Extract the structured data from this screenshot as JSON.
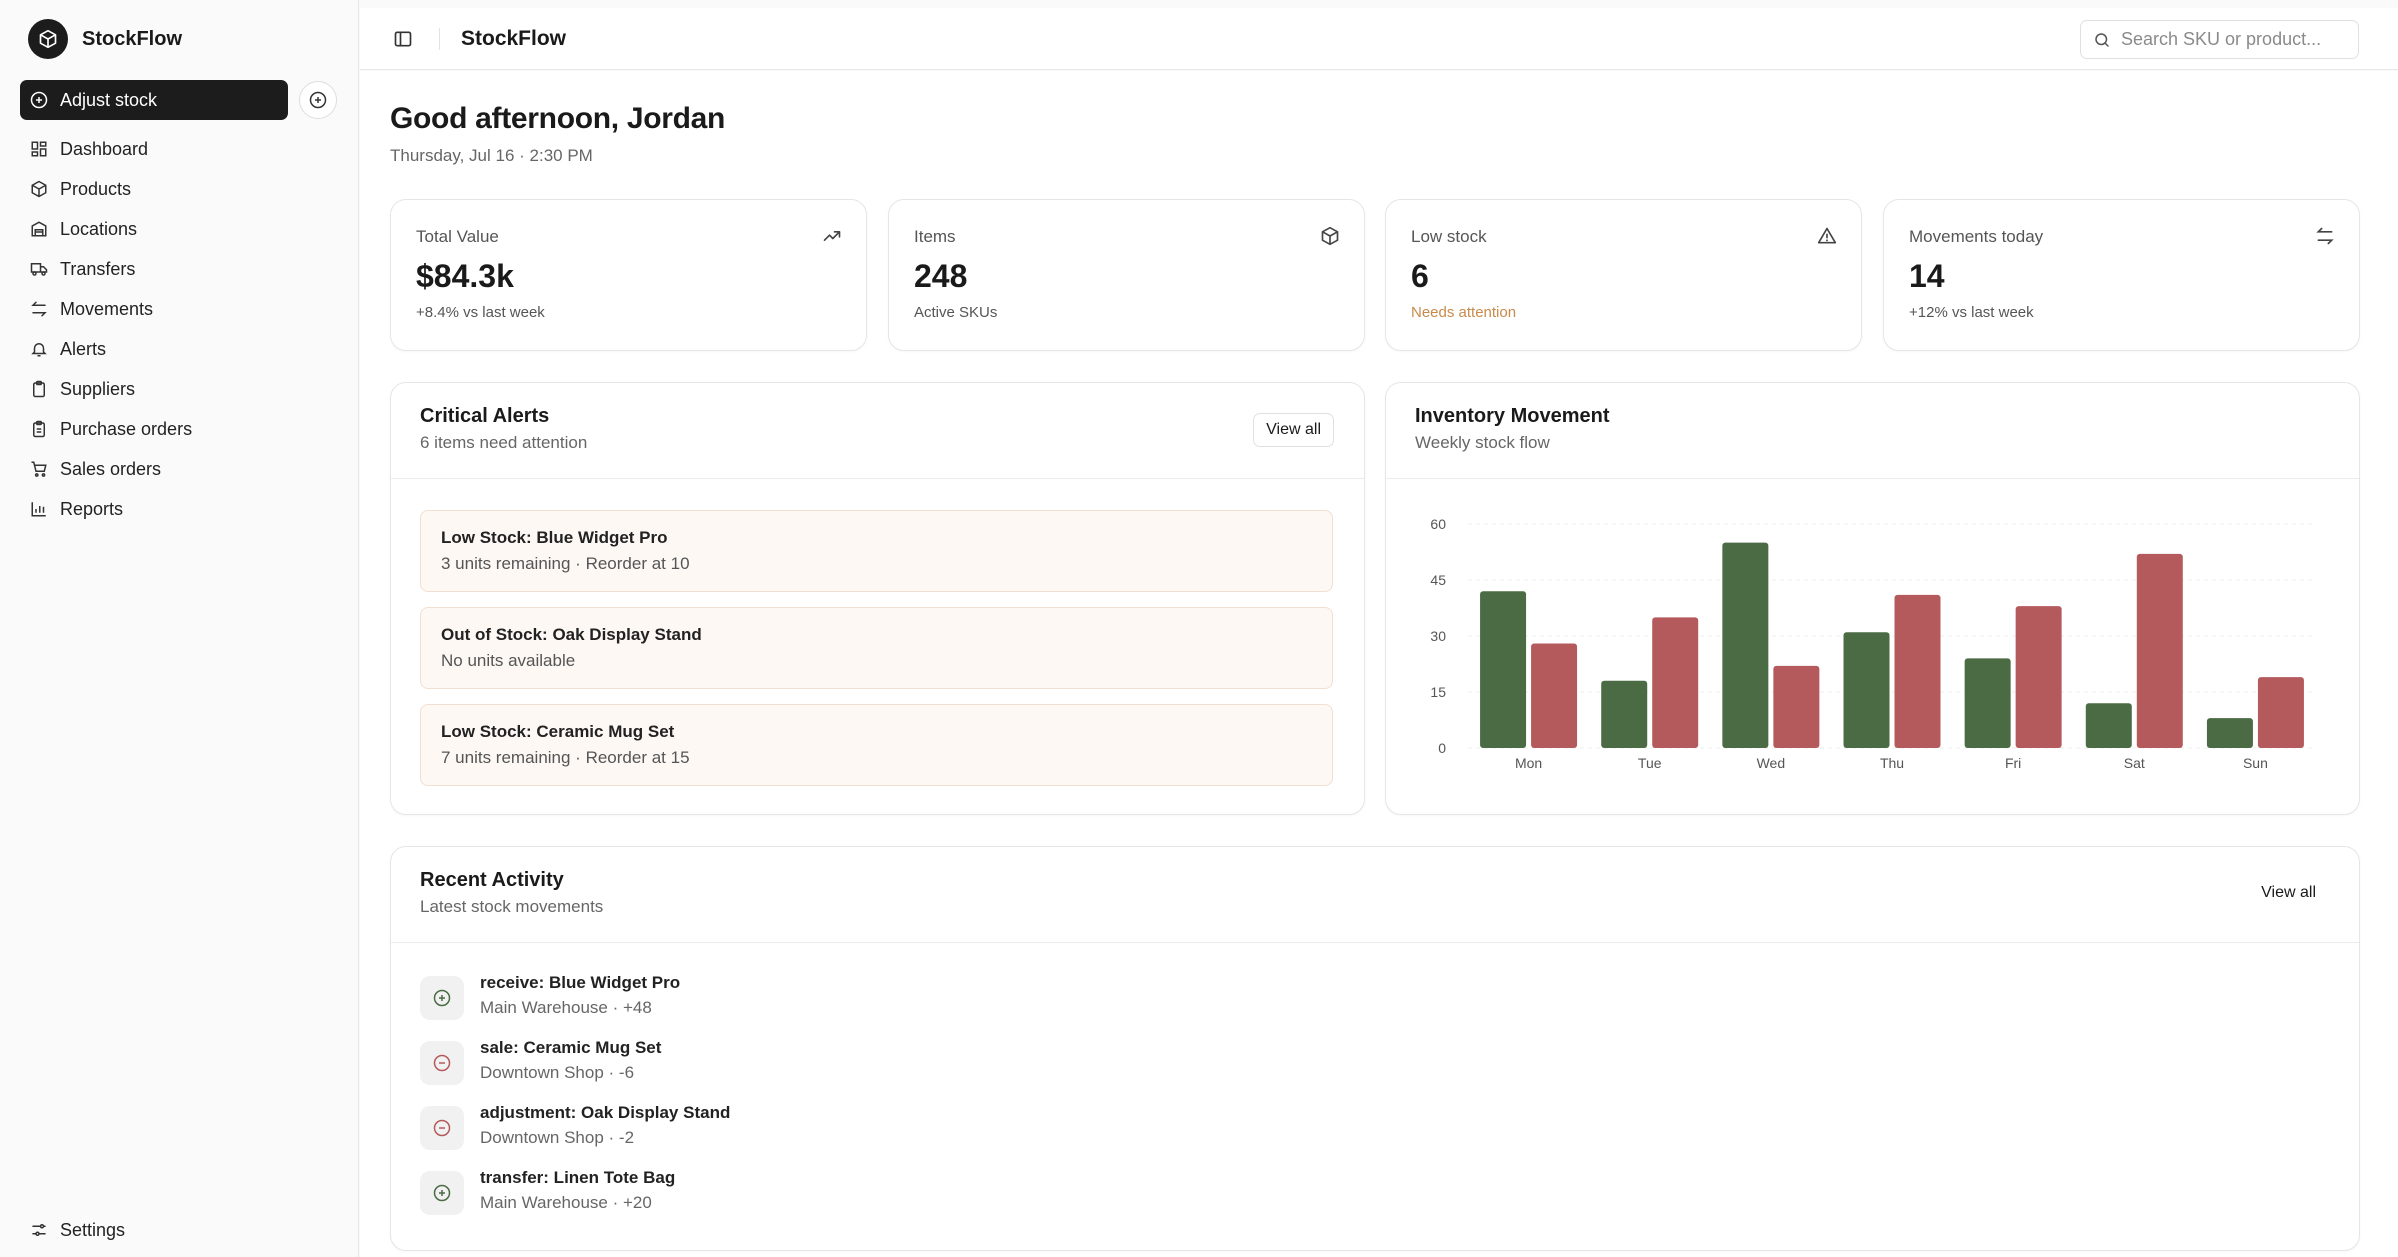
{
  "app": {
    "name": "StockFlow"
  },
  "sidebar": {
    "action_button": "Adjust stock",
    "items": [
      {
        "label": "Dashboard",
        "icon": "dashboard-icon"
      },
      {
        "label": "Products",
        "icon": "package-icon"
      },
      {
        "label": "Locations",
        "icon": "building-icon"
      },
      {
        "label": "Transfers",
        "icon": "truck-icon"
      },
      {
        "label": "Movements",
        "icon": "arrows-swap-icon"
      },
      {
        "label": "Alerts",
        "icon": "bell-icon"
      },
      {
        "label": "Suppliers",
        "icon": "clipboard-icon"
      },
      {
        "label": "Purchase orders",
        "icon": "clipboard-list-icon"
      },
      {
        "label": "Sales orders",
        "icon": "cart-icon"
      },
      {
        "label": "Reports",
        "icon": "bar-chart-icon"
      }
    ],
    "footer_item": {
      "label": "Settings",
      "icon": "sliders-icon"
    }
  },
  "header": {
    "title": "StockFlow",
    "search_placeholder": "Search SKU or product..."
  },
  "page": {
    "greeting": "Good afternoon, Jordan",
    "datetime": "Thursday, Jul 16 · 2:30 PM"
  },
  "stats": [
    {
      "label": "Total Value",
      "value": "$84.3k",
      "sub": "+8.4% vs last week",
      "icon": "trending-up-icon"
    },
    {
      "label": "Items",
      "value": "248",
      "sub": "Active SKUs",
      "icon": "package-icon"
    },
    {
      "label": "Low stock",
      "value": "6",
      "sub": "Needs attention",
      "icon": "warning-icon"
    },
    {
      "label": "Movements today",
      "value": "14",
      "sub": "+12% vs last week",
      "icon": "arrows-swap-icon"
    }
  ],
  "alerts_panel": {
    "title": "Critical Alerts",
    "subtitle": "6 items need attention",
    "view_all": "View all",
    "items": [
      {
        "title": "Low Stock: Blue Widget Pro",
        "detail": "3 units remaining · Reorder at 10"
      },
      {
        "title": "Out of Stock: Oak Display Stand",
        "detail": "No units available"
      },
      {
        "title": "Low Stock: Ceramic Mug Set",
        "detail": "7 units remaining · Reorder at 15"
      }
    ]
  },
  "movement_panel": {
    "title": "Inventory Movement",
    "subtitle": "Weekly stock flow"
  },
  "chart_data": {
    "type": "bar",
    "categories": [
      "Mon",
      "Tue",
      "Wed",
      "Thu",
      "Fri",
      "Sat",
      "Sun"
    ],
    "series": [
      {
        "values": [
          42,
          18,
          55,
          31,
          24,
          12,
          8
        ],
        "color": "#4a6b44"
      },
      {
        "values": [
          28,
          35,
          22,
          41,
          38,
          52,
          19
        ],
        "color": "#b55a5c"
      }
    ],
    "ylim": [
      0,
      60
    ],
    "yticks": [
      "0",
      "15",
      "30",
      "45",
      "60"
    ],
    "grid": "horizontal dashed",
    "legend": "none"
  },
  "activity_panel": {
    "title": "Recent Activity",
    "subtitle": "Latest stock movements",
    "view_all": "View all",
    "items": [
      {
        "title": "receive: Blue Widget Pro",
        "detail": "Main Warehouse · +48",
        "icon": "plus-circle-icon",
        "icon_color": "#4a6b44"
      },
      {
        "title": "sale: Ceramic Mug Set",
        "detail": "Downtown Shop · -6",
        "icon": "minus-circle-icon",
        "icon_color": "#b55a5c"
      },
      {
        "title": "adjustment: Oak Display Stand",
        "detail": "Downtown Shop · -2",
        "icon": "minus-circle-icon",
        "icon_color": "#b55a5c"
      },
      {
        "title": "transfer: Linen Tote Bag",
        "detail": "Main Warehouse · +20",
        "icon": "plus-circle-icon",
        "icon_color": "#4a6b44"
      }
    ]
  }
}
